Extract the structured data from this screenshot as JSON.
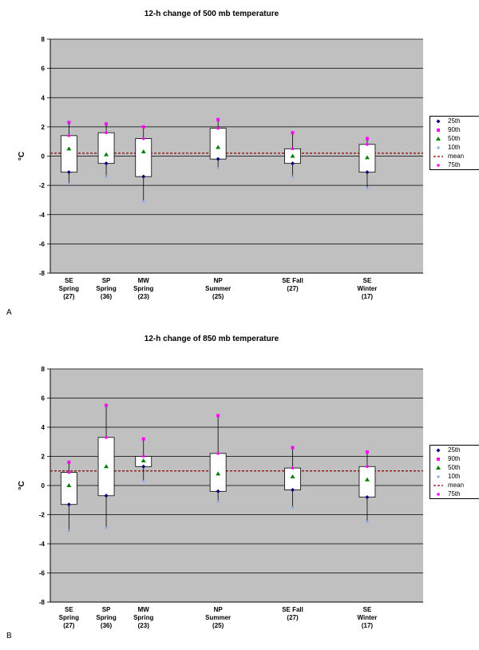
{
  "chart_data": [
    {
      "type": "box",
      "panel_label": "A",
      "title": "12-h change of 500 mb temperature",
      "ylabel": "°C",
      "ylim": [
        -8,
        8
      ],
      "yticks": [
        "-8",
        "-6",
        "-4",
        "-2",
        "0",
        "2",
        "4",
        "6",
        "8"
      ],
      "grid": true,
      "legend_position": "right",
      "categories": [
        {
          "lines": [
            "SE",
            "Spring",
            "(27)"
          ],
          "slot": 1
        },
        {
          "lines": [
            "SP",
            "Spring",
            "(36)"
          ],
          "slot": 2
        },
        {
          "lines": [
            "MW",
            "Spring",
            "(23)"
          ],
          "slot": 3
        },
        {
          "lines": [
            "NP",
            "Summer",
            "(25)"
          ],
          "slot": 5
        },
        {
          "lines": [
            "SE Fall",
            "(27)"
          ],
          "slot": 7
        },
        {
          "lines": [
            "SE",
            "Winter",
            "(17)"
          ],
          "slot": 9
        }
      ],
      "boxes": [
        {
          "p10": -1.9,
          "p25": -1.1,
          "p50": 0.5,
          "p75": 1.4,
          "p90": 2.3
        },
        {
          "p10": -1.4,
          "p25": -0.5,
          "p50": 0.1,
          "p75": 1.6,
          "p90": 2.2
        },
        {
          "p10": -3.1,
          "p25": -1.4,
          "p50": 0.3,
          "p75": 1.2,
          "p90": 2.0
        },
        {
          "p10": -0.8,
          "p25": -0.2,
          "p50": 0.6,
          "p75": 1.9,
          "p90": 2.5
        },
        {
          "p10": -1.4,
          "p25": -0.5,
          "p50": 0.0,
          "p75": 0.5,
          "p90": 1.6
        },
        {
          "p10": -2.2,
          "p25": -1.1,
          "p50": -0.1,
          "p75": 0.8,
          "p90": 1.2
        }
      ],
      "mean_line": 0.2,
      "legend": [
        "25th",
        "90th",
        "50th",
        "10th",
        "mean",
        "75th"
      ]
    },
    {
      "type": "box",
      "panel_label": "B",
      "title": "12-h change of 850 mb temperature",
      "ylabel": "°C",
      "ylim": [
        -8,
        8
      ],
      "yticks": [
        "-8",
        "-6",
        "-4",
        "-2",
        "0",
        "2",
        "4",
        "6",
        "8"
      ],
      "grid": true,
      "legend_position": "right",
      "categories": [
        {
          "lines": [
            "SE",
            "Spring",
            "(27)"
          ],
          "slot": 1
        },
        {
          "lines": [
            "SP",
            "Spring",
            "(36)"
          ],
          "slot": 2
        },
        {
          "lines": [
            "MW",
            "Spring",
            "(23)"
          ],
          "slot": 3
        },
        {
          "lines": [
            "NP",
            "Summer",
            "(25)"
          ],
          "slot": 5
        },
        {
          "lines": [
            "SE Fall",
            "(27)"
          ],
          "slot": 7
        },
        {
          "lines": [
            "SE",
            "Winter",
            "(17)"
          ],
          "slot": 9
        }
      ],
      "boxes": [
        {
          "p10": -3.1,
          "p25": -1.3,
          "p50": 0.0,
          "p75": 0.9,
          "p90": 1.6
        },
        {
          "p10": -2.9,
          "p25": -0.7,
          "p50": 1.3,
          "p75": 3.3,
          "p90": 5.5
        },
        {
          "p10": 0.3,
          "p25": 1.3,
          "p50": 1.7,
          "p75": 2.0,
          "p90": 3.2
        },
        {
          "p10": -1.1,
          "p25": -0.4,
          "p50": 0.8,
          "p75": 2.2,
          "p90": 4.8
        },
        {
          "p10": -1.5,
          "p25": -0.3,
          "p50": 0.6,
          "p75": 1.2,
          "p90": 2.6
        },
        {
          "p10": -2.5,
          "p25": -0.8,
          "p50": 0.4,
          "p75": 1.3,
          "p90": 2.3
        }
      ],
      "mean_line": 1.0,
      "legend": [
        "25th",
        "90th",
        "50th",
        "10th",
        "mean",
        "75th"
      ]
    }
  ],
  "colors": {
    "plot_bg": "#c0c0c0",
    "gridline": "#000000",
    "box_fill": "#ffffff",
    "p25": "#000080",
    "p90": "#ff00ff",
    "p50": "#008000",
    "p10": "#87aee6",
    "mean": "#8b0000",
    "p75": "#ff00ff"
  }
}
